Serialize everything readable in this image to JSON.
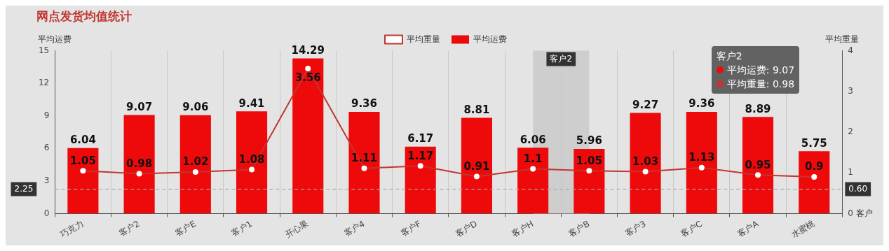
{
  "chart_data": {
    "type": "bar",
    "title": "网点发货均值统计",
    "xlabel": "客户",
    "ylabel": "平均运费",
    "y2label": "平均重量",
    "categories": [
      "巧克力",
      "客户2",
      "客户E",
      "客户1",
      "开心果",
      "客户4",
      "客户F",
      "客户D",
      "客户H",
      "客户B",
      "客户3",
      "客户C",
      "客户A",
      "水蜜桃"
    ],
    "series": [
      {
        "name": "平均运费",
        "color": "#ee0a0a",
        "values": [
          6.04,
          9.07,
          9.06,
          9.41,
          14.29,
          9.36,
          6.17,
          8.81,
          6.06,
          5.96,
          9.27,
          9.36,
          8.89,
          5.75
        ]
      },
      {
        "name": "平均重量",
        "type": "line",
        "axis": "y2",
        "color": "#c23531",
        "values": [
          1.05,
          0.98,
          1.02,
          1.08,
          3.56,
          1.11,
          1.17,
          0.91,
          1.1,
          1.05,
          1.03,
          1.13,
          0.95,
          0.9
        ]
      }
    ],
    "ylim": [
      0,
      15
    ],
    "yticks": [
      0,
      3,
      6,
      9,
      12,
      15
    ],
    "y2lim": [
      0,
      4
    ],
    "y2ticks": [
      0,
      1,
      2,
      3,
      4
    ],
    "ref_lines": [
      {
        "axis": "y",
        "value": 2.25,
        "label": "2.25",
        "line_style": "dashed",
        "color": "#aaaaaa"
      }
    ],
    "bands": [
      {
        "axis": "x",
        "from": "客户H",
        "to": "客户B",
        "label": "客户2",
        "color": "#c8c8c8"
      }
    ],
    "annotations": [
      "0.60",
      "客户2",
      "平均运费: 9.07",
      "平均重量: 0.98"
    ],
    "data_labels": true,
    "grid": "x",
    "legend": "top",
    "marker": "circle",
    "line_style": "solid"
  }
}
